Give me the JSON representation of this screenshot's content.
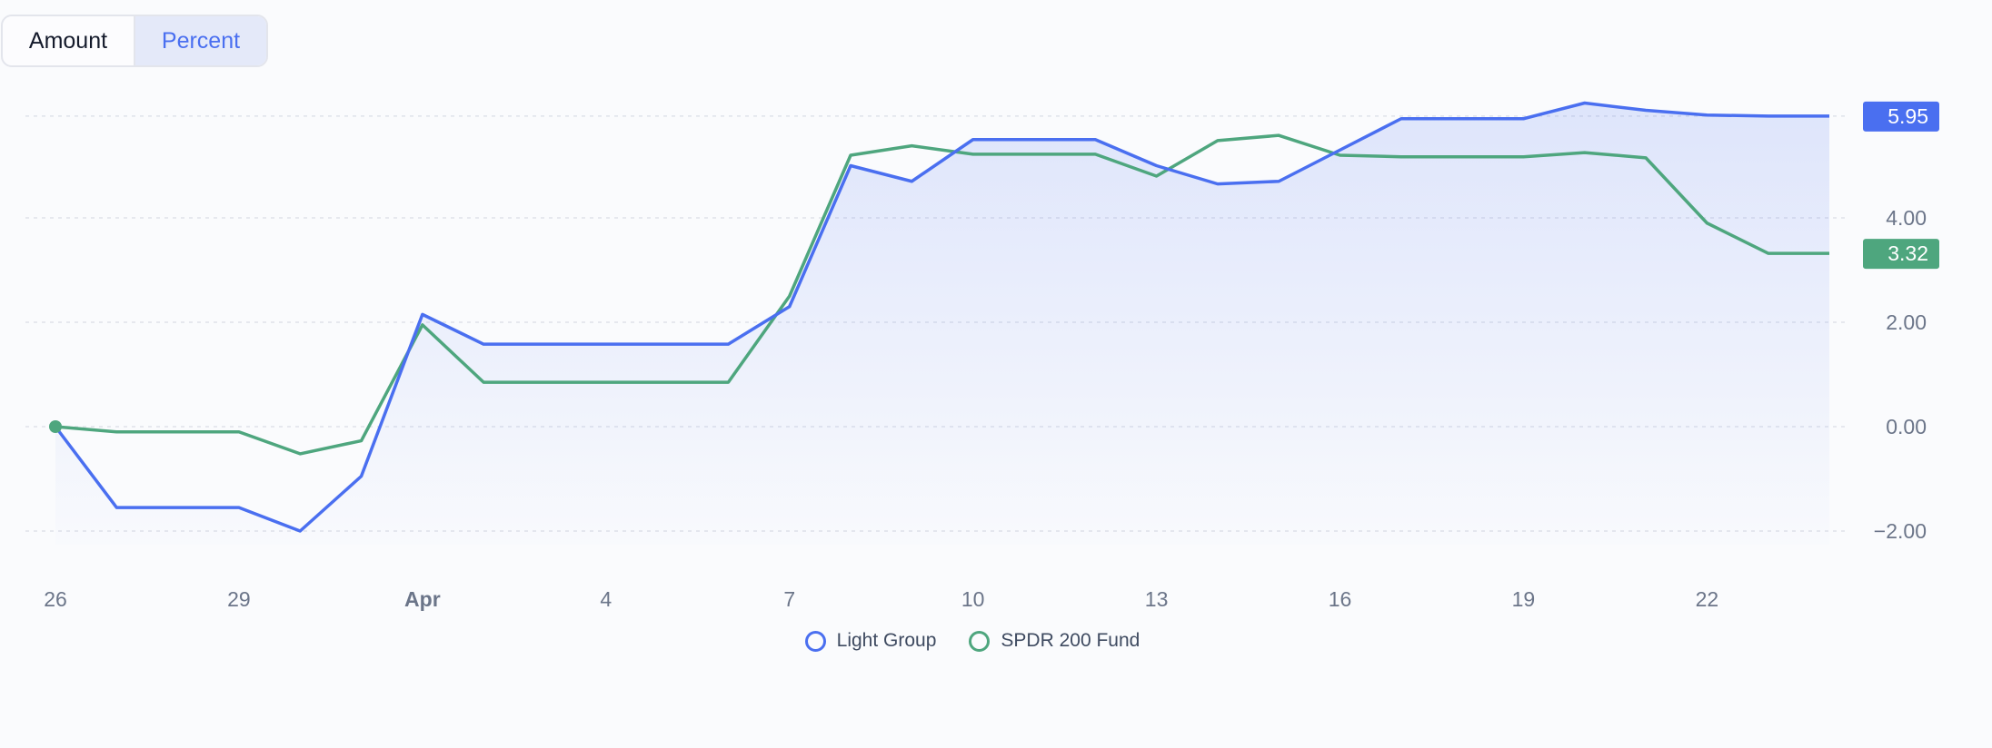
{
  "toggle": {
    "amount_label": "Amount",
    "percent_label": "Percent",
    "selected": "Percent"
  },
  "colors": {
    "series1": "#4a6ff0",
    "series2": "#4ea67e",
    "grid": "#dfe2ea",
    "axis_text": "#6b7589"
  },
  "chart_data": {
    "type": "line",
    "title": "",
    "xlabel": "",
    "ylabel": "",
    "ylim": [
      -2.0,
      5.95
    ],
    "y_ticks": [
      "5.95",
      "4.00",
      "2.00",
      "0.00",
      "−2.00"
    ],
    "y_tick_values": [
      5.95,
      4,
      2,
      0,
      -2
    ],
    "x_ticks": [
      {
        "label": "26",
        "index": 0,
        "bold": false
      },
      {
        "label": "29",
        "index": 3,
        "bold": false
      },
      {
        "label": "Apr",
        "index": 6,
        "bold": true
      },
      {
        "label": "4",
        "index": 9,
        "bold": false
      },
      {
        "label": "7",
        "index": 12,
        "bold": false
      },
      {
        "label": "10",
        "index": 15,
        "bold": false
      },
      {
        "label": "13",
        "index": 18,
        "bold": false
      },
      {
        "label": "16",
        "index": 21,
        "bold": false
      },
      {
        "label": "19",
        "index": 24,
        "bold": false
      },
      {
        "label": "22",
        "index": 27,
        "bold": false
      }
    ],
    "x": [
      "Mar 26",
      "Mar 27",
      "Mar 28",
      "Mar 29",
      "Mar 30",
      "Mar 31",
      "Apr 1",
      "Apr 2",
      "Apr 3",
      "Apr 4",
      "Apr 5",
      "Apr 6",
      "Apr 7",
      "Apr 8",
      "Apr 9",
      "Apr 10",
      "Apr 11",
      "Apr 12",
      "Apr 13",
      "Apr 14",
      "Apr 15",
      "Apr 16",
      "Apr 17",
      "Apr 18",
      "Apr 19",
      "Apr 20",
      "Apr 21",
      "Apr 22",
      "Apr 23",
      "Apr 24"
    ],
    "series": [
      {
        "name": "Light Group",
        "last_label": "5.95",
        "values": [
          0,
          -1.55,
          -1.55,
          -1.55,
          -2.0,
          -0.95,
          2.15,
          1.58,
          1.58,
          1.58,
          1.58,
          1.58,
          2.3,
          5.0,
          4.7,
          5.5,
          5.5,
          5.5,
          5.0,
          4.65,
          4.7,
          5.3,
          5.9,
          5.9,
          5.9,
          6.2,
          6.06,
          5.97,
          5.95,
          5.95
        ]
      },
      {
        "name": "SPDR 200 Fund",
        "last_label": "3.32",
        "values": [
          0,
          -0.1,
          -0.1,
          -0.1,
          -0.52,
          -0.27,
          1.95,
          0.85,
          0.85,
          0.85,
          0.85,
          0.85,
          2.5,
          5.2,
          5.38,
          5.22,
          5.22,
          5.22,
          4.8,
          5.48,
          5.58,
          5.2,
          5.17,
          5.17,
          5.17,
          5.25,
          5.15,
          3.9,
          3.32,
          3.32
        ]
      }
    ],
    "grid": true,
    "legend_position": "bottom-center"
  }
}
